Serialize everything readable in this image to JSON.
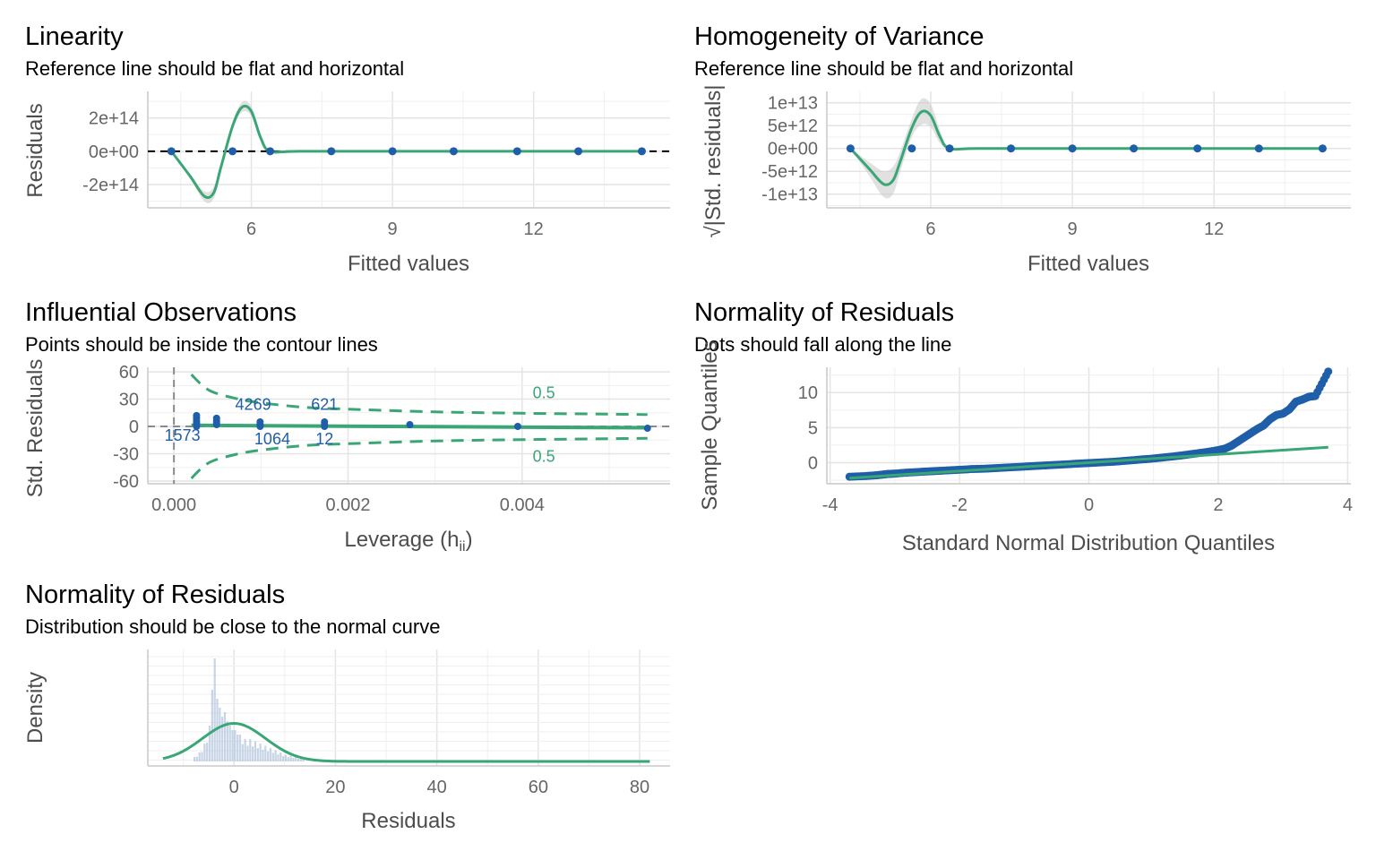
{
  "colors": {
    "point": "#1f5ea8",
    "line": "#3aa676",
    "band": "#c9c9c9",
    "density_fill": "#a9bfd8",
    "text_label": "#1f5ea8",
    "contour_label": "#3aa676"
  },
  "panels": {
    "linearity": {
      "title": "Linearity",
      "subtitle": "Reference line should be flat and horizontal",
      "xlabel": "Fitted values",
      "ylabel": "Residuals"
    },
    "homogeneity": {
      "title": "Homogeneity of Variance",
      "subtitle": "Reference line should be flat and horizontal",
      "xlabel": "Fitted values",
      "ylabel": "√|Std. residuals|"
    },
    "influential": {
      "title": "Influential Observations",
      "subtitle": "Points should be inside the contour lines",
      "xlabel": "Leverage (h",
      "xlabel_sub": "ii",
      "xlabel_close": ")",
      "ylabel": "Std. Residuals"
    },
    "qq": {
      "title": "Normality of Residuals",
      "subtitle": "Dots should fall along the line",
      "xlabel": "Standard Normal Distribution Quantiles",
      "ylabel": "Sample Quantiles"
    },
    "density": {
      "title": "Normality of Residuals",
      "subtitle": "Distribution should be close to the normal curve",
      "xlabel": "Residuals",
      "ylabel": "Density"
    }
  },
  "chart_data": [
    {
      "id": "linearity",
      "type": "scatter",
      "xlim": [
        3.8,
        14.9
      ],
      "ylim": [
        -340000000000000.0,
        360000000000000.0
      ],
      "xticks": [
        6,
        9,
        12
      ],
      "xtick_labels": [
        "6",
        "9",
        "12"
      ],
      "yticks": [
        200000000000000.0,
        0,
        -200000000000000.0
      ],
      "ytick_labels": [
        "2e+14",
        "0e+00",
        "-2e+14"
      ],
      "points": [
        [
          4.3,
          0
        ],
        [
          5.6,
          0
        ],
        [
          6.4,
          0
        ],
        [
          7.7,
          0
        ],
        [
          9.0,
          0
        ],
        [
          10.3,
          0
        ],
        [
          11.65,
          0
        ],
        [
          12.95,
          0
        ],
        [
          14.3,
          0
        ]
      ],
      "reference_line": 0,
      "smooth": {
        "x": [
          4.3,
          4.7,
          5.0,
          5.2,
          5.35,
          5.6,
          5.8,
          6.0,
          6.2,
          6.4,
          7.0,
          9.0,
          11.0,
          13.0,
          14.3
        ],
        "y": [
          0,
          -150000000000000.0,
          -270000000000000.0,
          -250000000000000.0,
          -100000000000000.0,
          150000000000000.0,
          265000000000000.0,
          240000000000000.0,
          80000000000000.0,
          0,
          0,
          0,
          0,
          0,
          0
        ],
        "band": [
          0,
          12000000000000.0,
          30000000000000.0,
          35000000000000.0,
          25000000000000.0,
          22000000000000.0,
          30000000000000.0,
          28000000000000.0,
          15000000000000.0,
          0,
          0,
          0,
          0,
          0,
          0
        ]
      }
    },
    {
      "id": "homogeneity",
      "type": "scatter",
      "xlim": [
        3.8,
        14.9
      ],
      "ylim": [
        -13000000000000.0,
        12500000000000.0
      ],
      "xticks": [
        6,
        9,
        12
      ],
      "xtick_labels": [
        "6",
        "9",
        "12"
      ],
      "yticks": [
        10000000000000.0,
        5000000000000.0,
        0,
        -5000000000000.0,
        -10000000000000.0
      ],
      "ytick_labels": [
        "1e+13",
        "5e+12",
        "0e+00",
        "-5e+12",
        "-1e+13"
      ],
      "points": [
        [
          4.3,
          0
        ],
        [
          5.6,
          0
        ],
        [
          6.4,
          0
        ],
        [
          7.7,
          0
        ],
        [
          9.0,
          0
        ],
        [
          10.3,
          0
        ],
        [
          11.65,
          0
        ],
        [
          12.95,
          0
        ],
        [
          14.3,
          0
        ]
      ],
      "smooth": {
        "x": [
          4.3,
          4.7,
          5.0,
          5.2,
          5.35,
          5.6,
          5.8,
          6.0,
          6.2,
          6.4,
          7.0,
          9.0,
          11.0,
          13.0,
          14.3
        ],
        "y": [
          0,
          -4500000000000.0,
          -7800000000000.0,
          -7000000000000.0,
          -3000000000000.0,
          4500000000000.0,
          8000000000000.0,
          7200000000000.0,
          2500000000000.0,
          0,
          0,
          0,
          0,
          0,
          0
        ],
        "band": [
          0,
          1500000000000.0,
          2800000000000.0,
          3000000000000.0,
          2200000000000.0,
          2000000000000.0,
          2800000000000.0,
          2500000000000.0,
          1400000000000.0,
          0,
          0,
          0,
          0,
          0,
          0
        ]
      }
    },
    {
      "id": "influential",
      "type": "scatter",
      "xlim": [
        -0.0003,
        0.0057
      ],
      "ylim": [
        -63,
        65
      ],
      "xticks": [
        0,
        0.002,
        0.004
      ],
      "xtick_labels": [
        "0.000",
        "0.002",
        "0.004"
      ],
      "yticks": [
        60,
        30,
        0,
        -30,
        -60
      ],
      "ytick_labels": [
        "60",
        "30",
        "0",
        "-30",
        "-60"
      ],
      "points": [
        [
          0.00026,
          12
        ],
        [
          0.00026,
          9
        ],
        [
          0.00026,
          6
        ],
        [
          0.00026,
          4
        ],
        [
          0.00026,
          2
        ],
        [
          0.00026,
          0
        ],
        [
          0.00049,
          9
        ],
        [
          0.00049,
          6
        ],
        [
          0.00049,
          4
        ],
        [
          0.00049,
          2
        ],
        [
          0.00099,
          5
        ],
        [
          0.00099,
          2
        ],
        [
          0.00099,
          0
        ],
        [
          0.00173,
          5
        ],
        [
          0.00173,
          2
        ],
        [
          0.00173,
          0
        ],
        [
          0.00271,
          2
        ],
        [
          0.00395,
          0
        ],
        [
          0.00544,
          -2
        ]
      ],
      "fit_line": {
        "x": [
          0.0002,
          0.00544
        ],
        "y": [
          1.2,
          -1.5
        ]
      },
      "contours": {
        "x": [
          0.0002,
          0.0004,
          0.0007,
          0.001,
          0.0015,
          0.002,
          0.003,
          0.004,
          0.005,
          0.00544
        ],
        "upper": [
          57,
          40,
          31,
          26,
          21,
          19,
          16,
          14.5,
          13.5,
          13
        ],
        "lower": [
          -57,
          -40,
          -31,
          -26,
          -21,
          -19,
          -16,
          -14.5,
          -13.5,
          -13
        ]
      },
      "contour_labels": [
        {
          "text": "0.5",
          "x": 0.00425,
          "y": 37
        },
        {
          "text": "0.5",
          "x": 0.00425,
          "y": -33
        }
      ],
      "point_labels": [
        {
          "text": "4269",
          "x": 0.00091,
          "y": 24
        },
        {
          "text": "621",
          "x": 0.00173,
          "y": 24
        },
        {
          "text": "1573",
          "x": 9.8e-05,
          "y": -10
        },
        {
          "text": "1064",
          "x": 0.00113,
          "y": -14
        },
        {
          "text": "12",
          "x": 0.00173,
          "y": -14
        }
      ],
      "vline": 0,
      "hline": 0
    },
    {
      "id": "qq",
      "type": "scatter",
      "xlim": [
        -4.05,
        4.05
      ],
      "ylim": [
        -3,
        13.6
      ],
      "xticks": [
        -4,
        -2,
        0,
        2,
        4
      ],
      "xtick_labels": [
        "-4",
        "-2",
        "0",
        "2",
        "4"
      ],
      "yticks": [
        10,
        5,
        0
      ],
      "ytick_labels": [
        "10",
        "5",
        "0"
      ],
      "points": [
        [
          -3.7,
          -2.0
        ],
        [
          -3.45,
          -1.9
        ],
        [
          -3.3,
          -1.8
        ],
        [
          -3.2,
          -1.7
        ],
        [
          -3.1,
          -1.6
        ],
        [
          -3.0,
          -1.55
        ],
        [
          -2.8,
          -1.4
        ],
        [
          -2.6,
          -1.3
        ],
        [
          -2.4,
          -1.2
        ],
        [
          -2.2,
          -1.1
        ],
        [
          -2.0,
          -1.0
        ],
        [
          -1.8,
          -0.9
        ],
        [
          -1.6,
          -0.85
        ],
        [
          -1.4,
          -0.75
        ],
        [
          -1.2,
          -0.65
        ],
        [
          -1.0,
          -0.55
        ],
        [
          -0.8,
          -0.45
        ],
        [
          -0.6,
          -0.35
        ],
        [
          -0.4,
          -0.25
        ],
        [
          -0.2,
          -0.15
        ],
        [
          0.0,
          -0.05
        ],
        [
          0.2,
          0.05
        ],
        [
          0.4,
          0.15
        ],
        [
          0.6,
          0.3
        ],
        [
          0.8,
          0.45
        ],
        [
          1.0,
          0.6
        ],
        [
          1.2,
          0.8
        ],
        [
          1.4,
          1.0
        ],
        [
          1.6,
          1.25
        ],
        [
          1.8,
          1.5
        ],
        [
          2.0,
          1.8
        ],
        [
          2.1,
          2.0
        ],
        [
          2.2,
          2.4
        ],
        [
          2.3,
          3.0
        ],
        [
          2.4,
          3.6
        ],
        [
          2.5,
          4.2
        ],
        [
          2.6,
          4.8
        ],
        [
          2.7,
          5.3
        ],
        [
          2.8,
          6.2
        ],
        [
          2.9,
          6.8
        ],
        [
          3.0,
          7.0
        ],
        [
          3.1,
          7.6
        ],
        [
          3.2,
          8.7
        ],
        [
          3.3,
          9.0
        ],
        [
          3.4,
          9.4
        ],
        [
          3.5,
          9.5
        ],
        [
          3.7,
          13.0
        ]
      ],
      "reference_line": {
        "x": [
          -3.7,
          3.7
        ],
        "y": [
          -2.2,
          2.2
        ]
      }
    },
    {
      "id": "density",
      "type": "area",
      "xlim": [
        -17,
        86
      ],
      "xticks": [
        0,
        20,
        40,
        60,
        80
      ],
      "xtick_labels": [
        "0",
        "20",
        "40",
        "60",
        "80"
      ],
      "histogram": {
        "x": [
          -8,
          -7,
          -6,
          -5,
          -4.5,
          -4,
          -3.5,
          -3,
          -2.5,
          -2,
          -1.5,
          -1,
          -0.5,
          0,
          0.5,
          1,
          2,
          3,
          4,
          5,
          6,
          7,
          8,
          9,
          10,
          12,
          14
        ],
        "density": [
          0.01,
          0.02,
          0.04,
          0.08,
          0.16,
          0.23,
          0.14,
          0.12,
          0.1,
          0.11,
          0.09,
          0.08,
          0.07,
          0.07,
          0.06,
          0.06,
          0.05,
          0.05,
          0.045,
          0.04,
          0.035,
          0.03,
          0.025,
          0.02,
          0.015,
          0.01,
          0.005
        ]
      },
      "normal_curve": {
        "mean": 0,
        "sd": 6.2
      },
      "x_end": 82
    }
  ]
}
